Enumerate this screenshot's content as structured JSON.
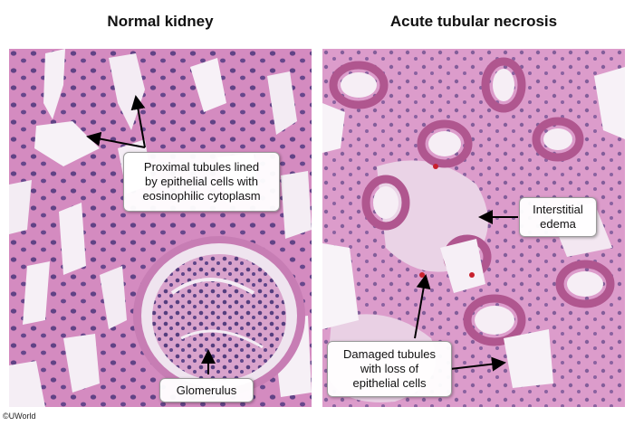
{
  "titles": {
    "left": "Normal kidney",
    "right": "Acute tubular necrosis"
  },
  "labels": {
    "proximal": "Proximal tubules lined\nby epithelial cells with\neosinophilic cytoplasm",
    "glomerulus": "Glomerulus",
    "edema": "Interstitial\nedema",
    "damaged": "Damaged tubules\nwith loss of\nepithelial cells"
  },
  "copyright": "©UWorld",
  "colors": {
    "tissue_pink": "#d98bbf",
    "tissue_dark": "#b95b9e",
    "nuclei": "#3a2a6e",
    "lumen": "#f5eef6"
  }
}
